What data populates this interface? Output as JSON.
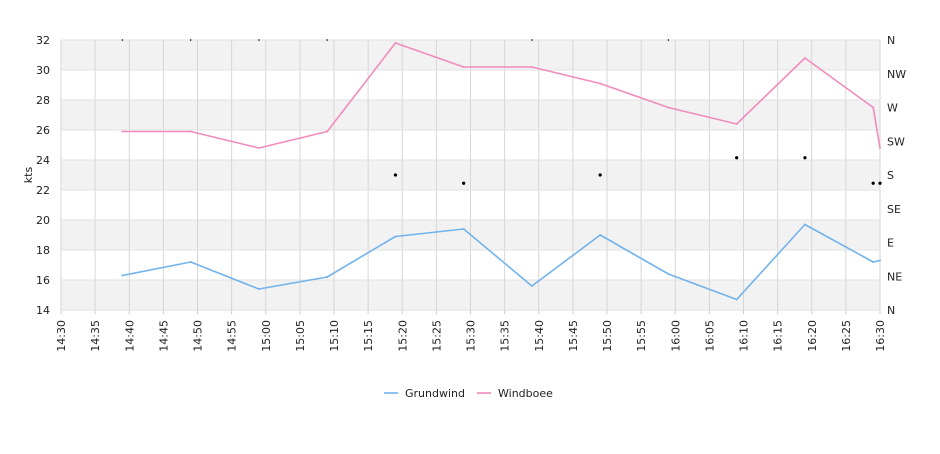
{
  "chart_data": {
    "type": "line",
    "title": "",
    "xlabel": "",
    "ylabel": "kts",
    "ylim": [
      14,
      32
    ],
    "y_ticks": [
      14,
      16,
      18,
      20,
      22,
      24,
      26,
      28,
      30,
      32
    ],
    "x_ticks": [
      "14:30",
      "14:35",
      "14:40",
      "14:45",
      "14:50",
      "14:55",
      "15:00",
      "15:05",
      "15:10",
      "15:15",
      "15:20",
      "15:25",
      "15:30",
      "15:35",
      "15:40",
      "15:45",
      "15:50",
      "15:55",
      "16:00",
      "16:05",
      "16:10",
      "16:15",
      "16:20",
      "16:25",
      "16:30"
    ],
    "xlim": [
      "14:30",
      "16:30"
    ],
    "y2_ticks": [
      "N",
      "NE",
      "E",
      "SE",
      "S",
      "SW",
      "W",
      "NW",
      "N"
    ],
    "y2lim": [
      0,
      360
    ],
    "grid": true,
    "legend_position": "bottom-center",
    "series": [
      {
        "name": "Grundwind",
        "color": "#72b3ec",
        "x": [
          "14:39",
          "14:49",
          "14:59",
          "15:09",
          "15:19",
          "15:29",
          "15:39",
          "15:49",
          "15:59",
          "16:09",
          "16:19",
          "16:29",
          "16:30"
        ],
        "values": [
          16.3,
          17.2,
          15.4,
          16.2,
          18.9,
          19.4,
          15.6,
          19.0,
          16.4,
          14.7,
          19.7,
          17.2,
          17.3
        ]
      },
      {
        "name": "Windboee",
        "color": "#f08cbd",
        "x": [
          "14:39",
          "14:49",
          "14:59",
          "15:09",
          "15:19",
          "15:29",
          "15:39",
          "15:49",
          "15:59",
          "16:09",
          "16:19",
          "16:29",
          "16:30"
        ],
        "values": [
          25.9,
          25.9,
          24.8,
          25.9,
          31.8,
          30.2,
          30.2,
          29.1,
          27.5,
          26.4,
          30.8,
          27.5,
          24.8
        ]
      }
    ],
    "direction": {
      "x": [
        "14:39",
        "14:49",
        "14:59",
        "15:09",
        "15:19",
        "15:29",
        "15:39",
        "15:49",
        "15:59",
        "16:09",
        "16:19",
        "16:29",
        "16:30"
      ],
      "degrees": [
        360,
        360,
        360,
        360,
        180,
        169,
        360,
        180,
        360,
        203,
        203,
        169,
        169
      ]
    }
  }
}
